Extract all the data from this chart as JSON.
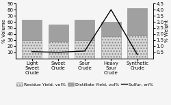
{
  "categories": [
    "Light Sweet Crude",
    "Sweet Crude",
    "Sour Crude",
    "Heavy Sour Crude",
    "Synthetic Crude"
  ],
  "residue_yield": [
    30,
    27,
    30,
    37,
    38
  ],
  "distillate_yield": [
    33,
    29,
    33,
    23,
    45
  ],
  "sulfur": [
    0.55,
    0.5,
    0.6,
    4.0,
    0.3
  ],
  "ylim_left": [
    0,
    90
  ],
  "ylim_right": [
    0.0,
    4.5
  ],
  "yticks_left": [
    10,
    20,
    30,
    40,
    50,
    60,
    70,
    80,
    90
  ],
  "yticks_right": [
    0.5,
    1.0,
    1.5,
    2.0,
    2.5,
    3.0,
    3.5,
    4.0,
    4.5
  ],
  "ylabel_left": "% Volume",
  "ylabel_right": "% Weight",
  "bar_residue_color": "#d8d8d8",
  "bar_residue_hatch": "....",
  "bar_distillate_color": "#a0a0a0",
  "bar_distillate_hatch": "",
  "line_color": "#000000",
  "background_color": "#f5f5f5",
  "legend_residue": "Residue Yield, vol%",
  "legend_distillate": "Distillate Yield, vol%",
  "legend_sulfur": "Sulfur, wt%",
  "label_fontsize": 5,
  "tick_fontsize": 5,
  "legend_fontsize": 4.5,
  "bar_width": 0.75
}
